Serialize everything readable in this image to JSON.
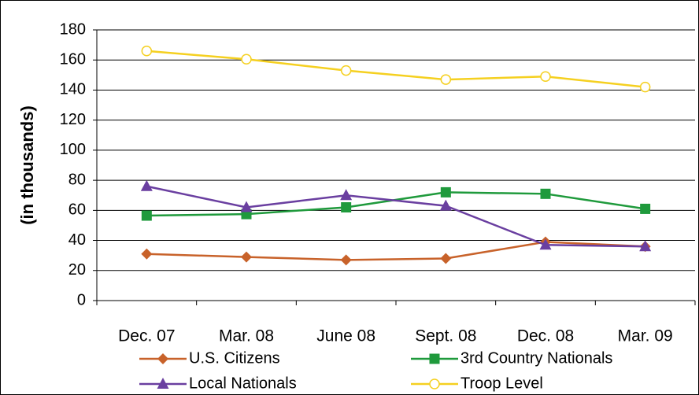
{
  "chart_data": {
    "type": "line",
    "y_label": "(in thousands)",
    "categories": [
      "Dec. 07",
      "Mar. 08",
      "June 08",
      "Sept. 08",
      "Dec. 08",
      "Mar. 09"
    ],
    "series": [
      {
        "name": "U.S. Citizens",
        "color": "#c8622a",
        "marker": "diamond",
        "values": [
          31,
          29,
          27,
          28,
          39,
          36
        ]
      },
      {
        "name": "3rd Country Nationals",
        "color": "#1f9a3c",
        "marker": "square",
        "values": [
          56.5,
          57.5,
          62,
          72,
          71,
          61
        ]
      },
      {
        "name": "Local Nationals",
        "color": "#6a3fa0",
        "marker": "triangle",
        "values": [
          76,
          62,
          70,
          63,
          37,
          36
        ]
      },
      {
        "name": "Troop Level",
        "color": "#f5d020",
        "marker": "circle",
        "values": [
          166,
          160.5,
          153,
          147,
          149,
          142
        ]
      }
    ],
    "ylim": [
      0,
      180
    ],
    "yticks": [
      0,
      20,
      40,
      60,
      80,
      100,
      120,
      140,
      160,
      180
    ],
    "grid": true
  }
}
